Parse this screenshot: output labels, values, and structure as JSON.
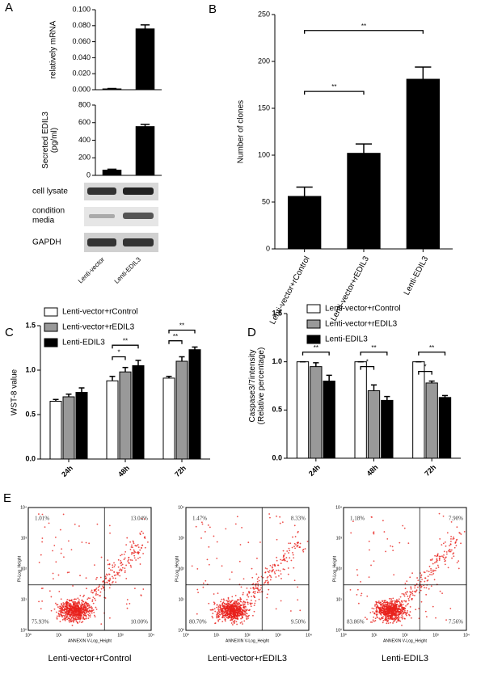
{
  "panel_labels": [
    "A",
    "B",
    "C",
    "D",
    "E"
  ],
  "chart_data": [
    {
      "type": "bar",
      "ylabel": "relatively mRNA",
      "categories": [
        null,
        null
      ],
      "series": [
        {
          "color": "#000000",
          "values": [
            0.001,
            0.076
          ],
          "errors": [
            0.0005,
            0.005
          ]
        }
      ],
      "ylim": [
        0,
        0.1
      ],
      "yticks": [
        {
          "value": 0,
          "label": "0.000"
        },
        {
          "value": 0.02,
          "label": "0.020"
        },
        {
          "value": 0.04,
          "label": "0.040"
        },
        {
          "value": 0.06,
          "label": "0.060"
        },
        {
          "value": 0.08,
          "label": "0.080"
        },
        {
          "value": 0.1,
          "label": "0.100"
        }
      ]
    },
    {
      "type": "bar",
      "ylabel": [
        "Secreted EDIL3",
        "(pg/ml)"
      ],
      "categories": [
        null,
        null
      ],
      "series": [
        {
          "color": "#000000",
          "values": [
            60,
            555
          ],
          "errors": [
            10,
            25
          ]
        }
      ],
      "ylim": [
        0,
        800
      ],
      "yticks": [
        0,
        200,
        400,
        600,
        800
      ]
    },
    {
      "type": "bar",
      "ylabel": "Number of clones",
      "categories": [
        "Lenti-vector+rControl",
        "Lenti-vector+rEDIL3",
        "Lenti-EDIL3"
      ],
      "series": [
        {
          "color": "#000000",
          "values": [
            56,
            102,
            181
          ],
          "errors": [
            10,
            10,
            13
          ]
        }
      ],
      "ylim": [
        0,
        250
      ],
      "yticks": [
        0,
        50,
        100,
        150,
        200,
        250
      ],
      "annotations": [
        "**",
        "**"
      ]
    },
    {
      "type": "bar",
      "ylabel": "WST-8 value",
      "categories": [
        "24h",
        "48h",
        "72h"
      ],
      "series": [
        {
          "name": "Lenti-vector+rControl",
          "color": "#ffffff",
          "values": [
            0.65,
            0.88,
            0.91
          ],
          "errors": [
            0.02,
            0.05,
            0.02
          ]
        },
        {
          "name": "Lenti-vector+rEDIL3",
          "color": "#999999",
          "values": [
            0.7,
            0.98,
            1.1
          ],
          "errors": [
            0.03,
            0.05,
            0.05
          ]
        },
        {
          "name": "Lenti-EDIL3",
          "color": "#000000",
          "values": [
            0.75,
            1.05,
            1.23
          ],
          "errors": [
            0.05,
            0.06,
            0.03
          ]
        }
      ],
      "ylim": [
        0,
        1.5
      ],
      "yticks": [
        {
          "value": 0,
          "label": "0.0"
        },
        0.5,
        {
          "value": 1,
          "label": "1.0"
        },
        1.5
      ],
      "annotations": [
        "*",
        "**",
        "**",
        "**"
      ]
    },
    {
      "type": "bar",
      "ylabel": [
        "Caspase3/7intensity",
        "(Relative percentage)"
      ],
      "categories": [
        "24h",
        "48h",
        "72h"
      ],
      "series": [
        {
          "name": "Lenti-vector+rControl",
          "color": "#ffffff",
          "values": [
            1.0,
            1.0,
            1.0
          ],
          "errors": [
            0,
            0,
            0
          ]
        },
        {
          "name": "Lenti-vector+rEDIL3",
          "color": "#999999",
          "values": [
            0.95,
            0.7,
            0.78
          ],
          "errors": [
            0.04,
            0.06,
            0.02
          ]
        },
        {
          "name": "Lenti-EDIL3",
          "color": "#000000",
          "values": [
            0.8,
            0.6,
            0.63
          ],
          "errors": [
            0.06,
            0.04,
            0.02
          ]
        }
      ],
      "ylim": [
        0,
        1.5
      ],
      "yticks": [
        {
          "value": 0,
          "label": "0.0"
        },
        0.5,
        {
          "value": 1,
          "label": "1.0"
        },
        1.5
      ],
      "annotations": [
        "**",
        "*",
        "**",
        "*",
        "**"
      ]
    }
  ],
  "blots": {
    "rows": [
      "cell lysate",
      [
        "condition",
        "media"
      ],
      "GAPDH"
    ],
    "lanes": [
      "Lenti-vector",
      "Lenti-EDIL3"
    ]
  },
  "flow_axes": {
    "xlabel": "ANNEXIN V-Log_Height",
    "ylabel": "PI-Log_Height",
    "ticks": [
      "10⁰",
      "10¹",
      "10²",
      "10³",
      "10⁴"
    ]
  },
  "flow": [
    {
      "quadrants": [
        "1.01%",
        "13.04%",
        "75.93%",
        "10.00%"
      ],
      "caption": "Lenti-vector+rControl"
    },
    {
      "quadrants": [
        "1.47%",
        "8.33%",
        "80.70%",
        "9.50%"
      ],
      "caption": "Lenti-vector+rEDIL3"
    },
    {
      "quadrants": [
        "1.18%",
        "7.90%",
        "83.86%",
        "7.56%"
      ],
      "caption": "Lenti-EDIL3"
    }
  ]
}
